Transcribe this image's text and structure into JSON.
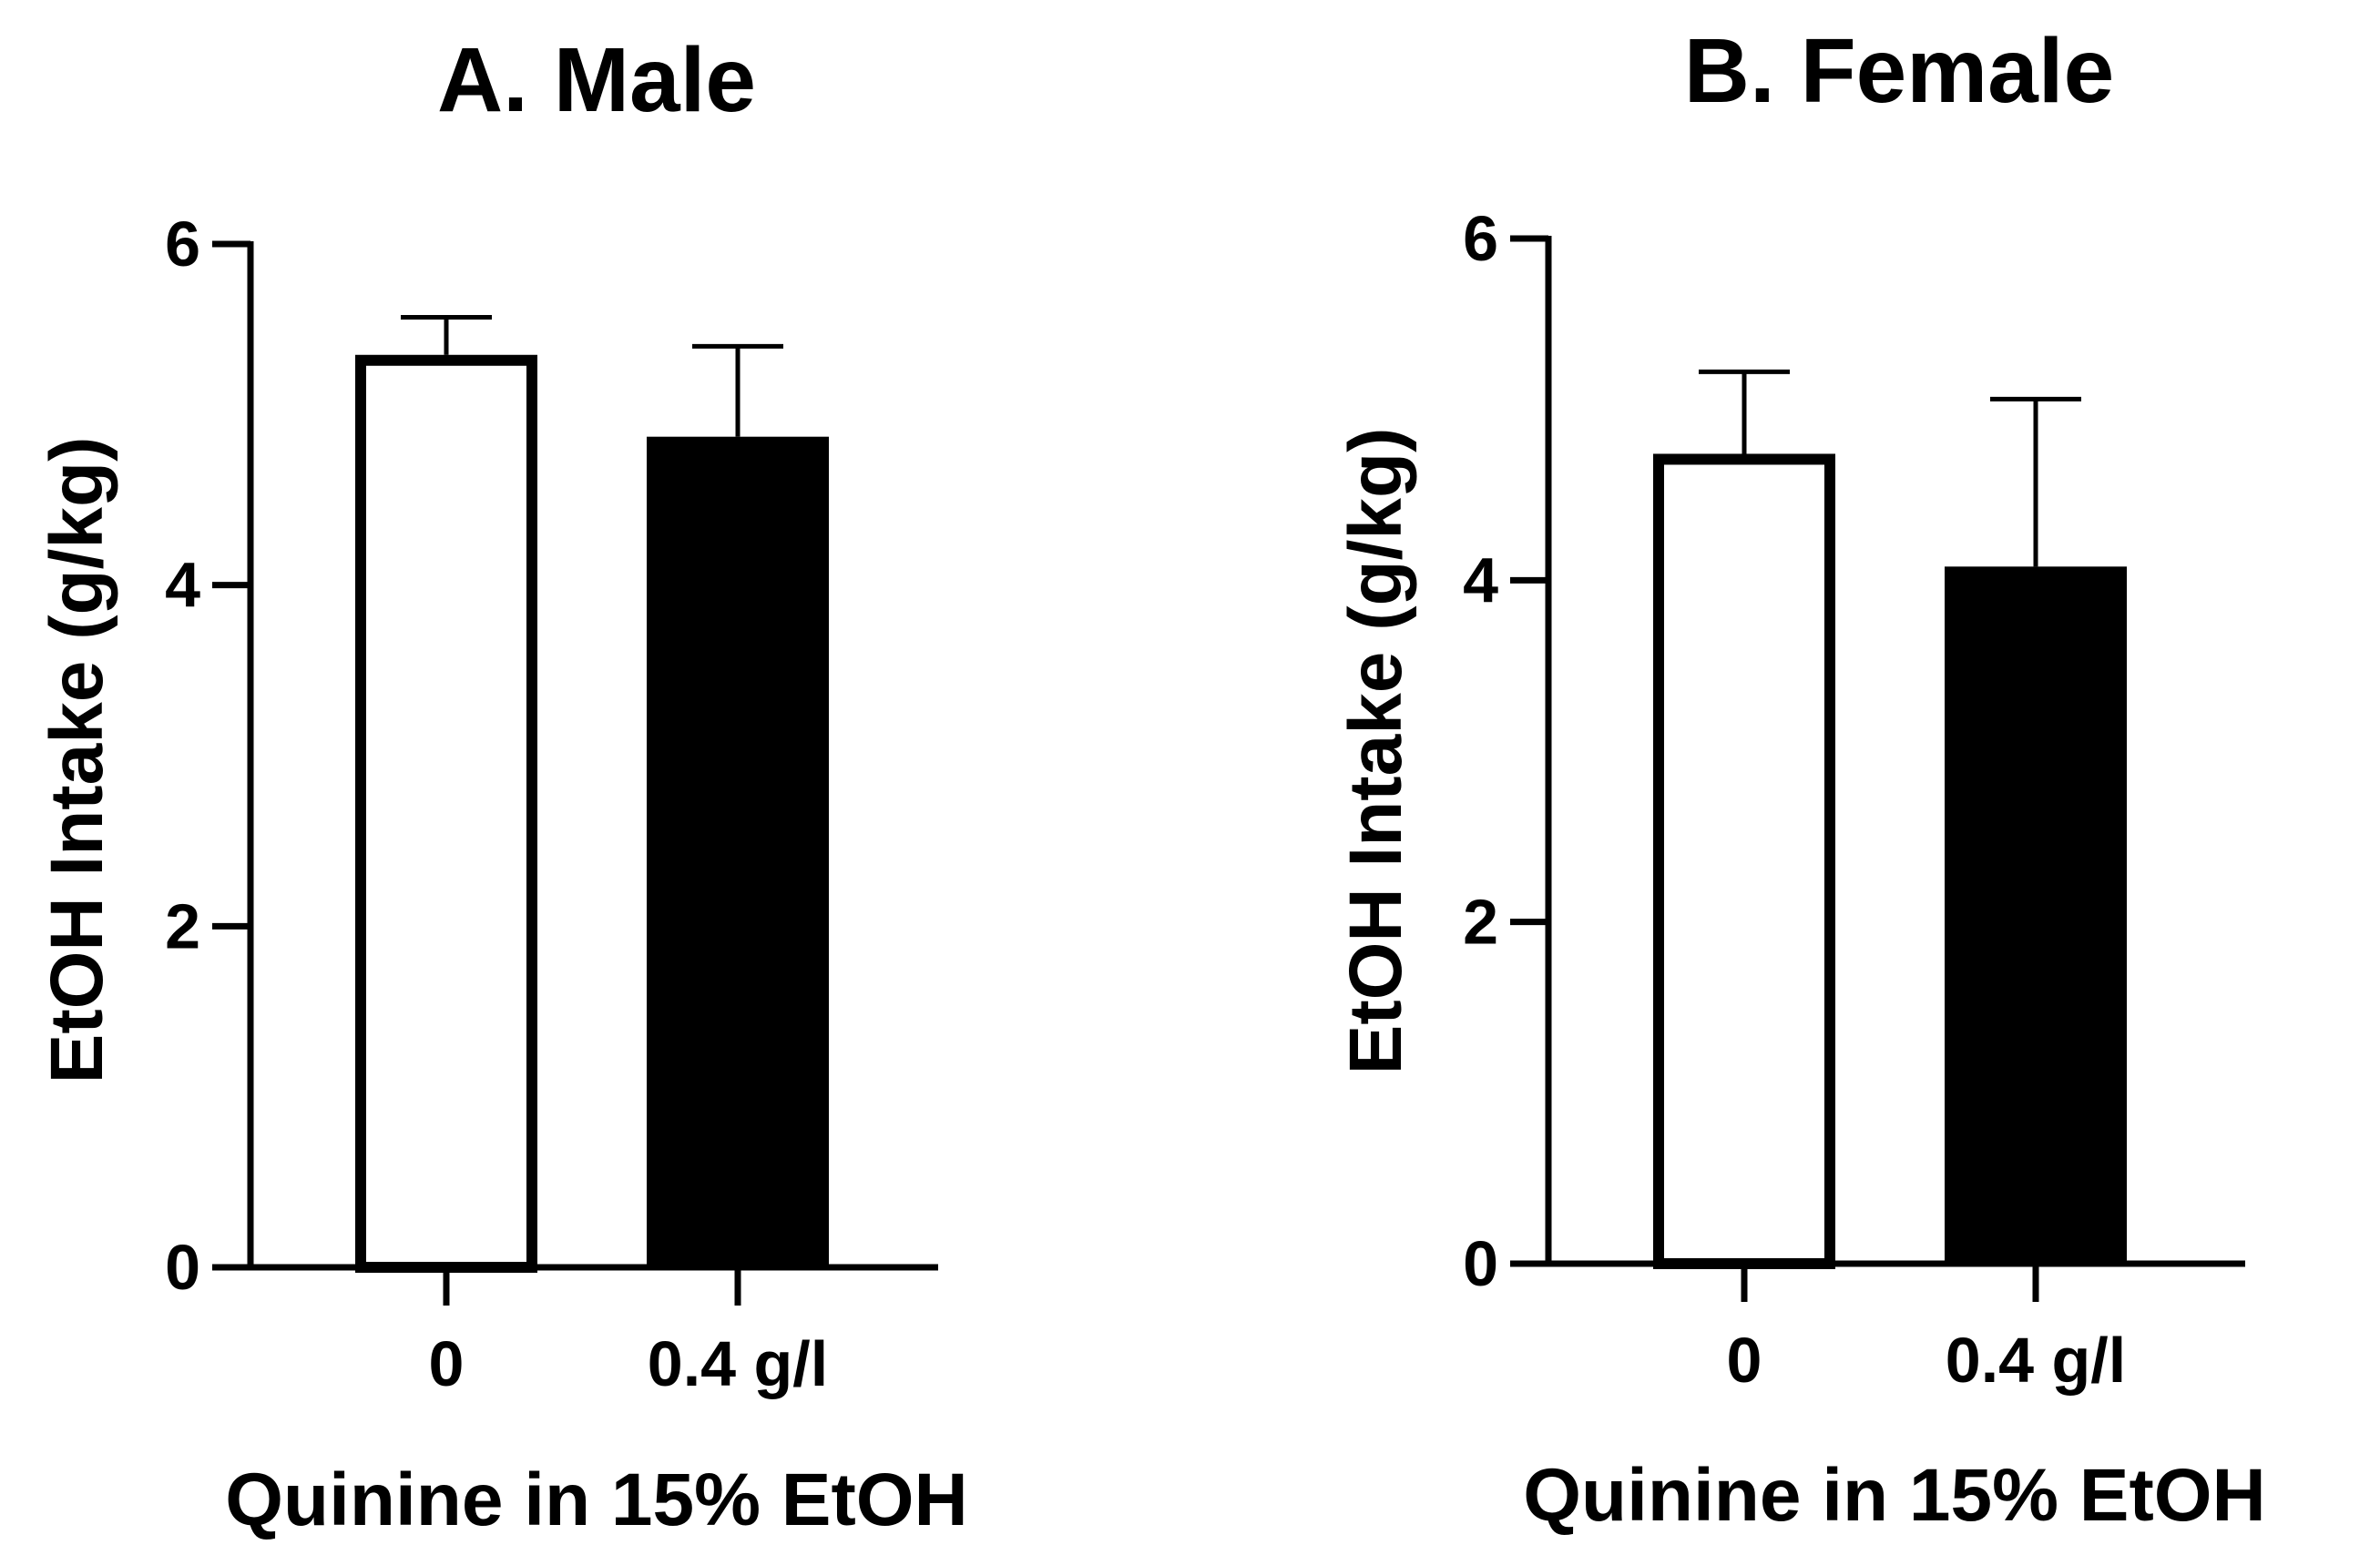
{
  "chart_data": [
    {
      "type": "bar",
      "title": "A. Male",
      "ylabel": "EtOH Intake (g/kg)",
      "xlabel": "Quinine in 15% EtOH",
      "categories": [
        "0",
        "0.4 g/l"
      ],
      "values": [
        5.35,
        4.87
      ],
      "errors": [
        0.22,
        0.53
      ],
      "ylim": [
        0,
        6
      ],
      "yticks": [
        0,
        2,
        4,
        6
      ],
      "ytick_labels": [
        "0",
        "2",
        "4",
        "6"
      ],
      "bar_styles": [
        "open",
        "filled"
      ],
      "colors": {
        "fill": "#000000",
        "open": "#ffffff",
        "stroke": "#000000"
      }
    },
    {
      "type": "bar",
      "title": "B. Female",
      "ylabel": "EtOH Intake (g/kg)",
      "xlabel": "Quinine in 15% EtOH",
      "categories": [
        "0",
        "0.4 g/l"
      ],
      "values": [
        4.74,
        4.08
      ],
      "errors": [
        0.48,
        0.98
      ],
      "ylim": [
        0,
        6
      ],
      "yticks": [
        0,
        2,
        4,
        6
      ],
      "ytick_labels": [
        "0",
        "2",
        "4",
        "6"
      ],
      "bar_styles": [
        "open",
        "filled"
      ],
      "colors": {
        "fill": "#000000",
        "open": "#ffffff",
        "stroke": "#000000"
      }
    }
  ]
}
